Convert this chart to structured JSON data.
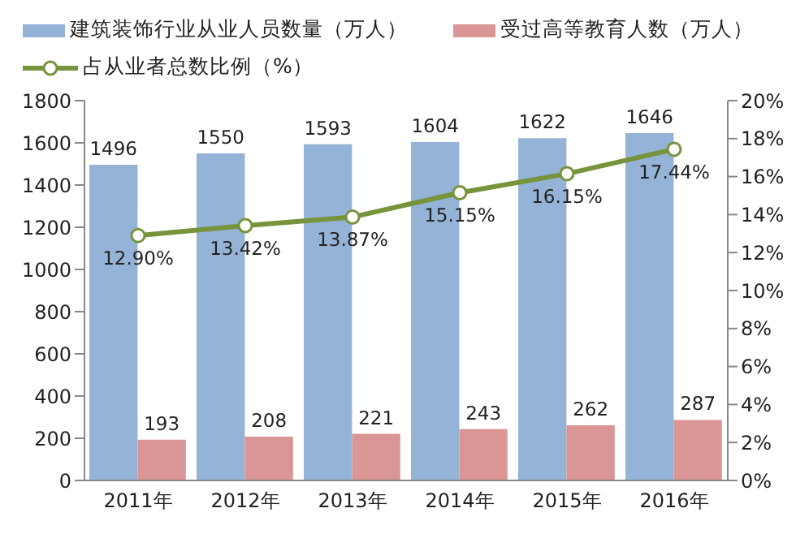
{
  "chart_data": {
    "type": "bar",
    "categories": [
      "2011年",
      "2012年",
      "2013年",
      "2014年",
      "2015年",
      "2016年"
    ],
    "series": [
      {
        "name": "建筑装饰行业从业人员数量（万人）",
        "color": "#95b3d7",
        "values": [
          1496,
          1550,
          1593,
          1604,
          1622,
          1646
        ],
        "value_labels": [
          "1496",
          "1550",
          "1593",
          "1604",
          "1622",
          "1646"
        ]
      },
      {
        "name": "受过高等教育人数（万人）",
        "color": "#d99694",
        "values": [
          193,
          208,
          221,
          243,
          262,
          287
        ],
        "value_labels": [
          "193",
          "208",
          "221",
          "243",
          "262",
          "287"
        ]
      },
      {
        "name": "占从业者总数比例（%）",
        "type": "line",
        "axis": "y2",
        "color": "#77933c",
        "marker": "circle",
        "values": [
          12.9,
          13.42,
          13.87,
          15.15,
          16.15,
          17.44
        ],
        "value_labels": [
          "12.90%",
          "13.42%",
          "13.87%",
          "15.15%",
          "16.15%",
          "17.44%"
        ]
      }
    ],
    "ylim": [
      0,
      1800
    ],
    "yticks": [
      0,
      200,
      400,
      600,
      800,
      1000,
      1200,
      1400,
      1600,
      1800
    ],
    "y2lim": [
      0,
      20
    ],
    "y2ticks": [
      {
        "value": 0,
        "label": "0%"
      },
      {
        "value": 2,
        "label": "2%"
      },
      {
        "value": 4,
        "label": "4%"
      },
      {
        "value": 6,
        "label": "6%"
      },
      {
        "value": 8,
        "label": "8%"
      },
      {
        "value": 10,
        "label": "10%"
      },
      {
        "value": 12,
        "label": "12%"
      },
      {
        "value": 14,
        "label": "14%"
      },
      {
        "value": 16,
        "label": "16%"
      },
      {
        "value": 18,
        "label": "18%"
      },
      {
        "value": 20,
        "label": "20%"
      }
    ],
    "grid": false,
    "legend": "top left"
  }
}
